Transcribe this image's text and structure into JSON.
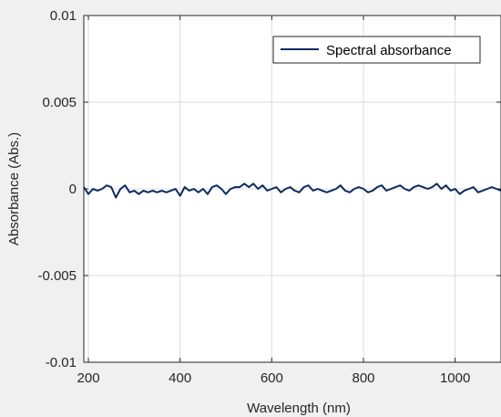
{
  "chart_data": {
    "type": "line",
    "title": "",
    "xlabel": "Wavelength (nm)",
    "ylabel": "Absorbance (Abs.)",
    "xlim": [
      190,
      1100
    ],
    "ylim": [
      -0.01,
      0.01
    ],
    "x_ticks": [
      200,
      400,
      600,
      800,
      1000
    ],
    "x_tick_labels": [
      "200",
      "400",
      "600",
      "800",
      "1000"
    ],
    "y_ticks": [
      0.01,
      0.005,
      0,
      -0.005,
      -0.01
    ],
    "y_tick_labels": [
      "0.01",
      "0.005",
      "0",
      "-0.005",
      "-0.01"
    ],
    "grid": true,
    "legend_position": "top-right",
    "series_color": "#0d2b5e",
    "series": [
      {
        "name": "Spectral absorbance",
        "x": [
          190,
          200,
          210,
          220,
          230,
          240,
          250,
          260,
          270,
          280,
          290,
          300,
          310,
          320,
          330,
          340,
          350,
          360,
          370,
          380,
          390,
          400,
          410,
          420,
          430,
          440,
          450,
          460,
          470,
          480,
          490,
          500,
          510,
          520,
          530,
          540,
          550,
          560,
          570,
          580,
          590,
          600,
          610,
          620,
          630,
          640,
          650,
          660,
          670,
          680,
          690,
          700,
          710,
          720,
          730,
          740,
          750,
          760,
          770,
          780,
          790,
          800,
          810,
          820,
          830,
          840,
          850,
          860,
          870,
          880,
          890,
          900,
          910,
          920,
          930,
          940,
          950,
          960,
          970,
          980,
          990,
          1000,
          1010,
          1020,
          1030,
          1040,
          1050,
          1060,
          1070,
          1080,
          1090,
          1100
        ],
        "values": [
          0.0001,
          -0.0003,
          0.0,
          -0.0001,
          0.0,
          0.0002,
          0.0001,
          -0.0005,
          0.0,
          0.0002,
          -0.0002,
          -0.0001,
          -0.0003,
          -0.0001,
          -0.0002,
          -0.0001,
          -0.0002,
          -0.0001,
          -0.0002,
          -0.0001,
          0.0,
          -0.0004,
          0.0001,
          -0.0001,
          0.0,
          -0.0002,
          0.0,
          -0.0003,
          0.0001,
          0.0002,
          0.0,
          -0.0003,
          0.0,
          0.0001,
          0.0001,
          0.0003,
          0.0001,
          0.0003,
          0.0,
          0.0002,
          -0.0001,
          0.0,
          0.0001,
          -0.0002,
          0.0,
          0.0001,
          -0.0001,
          -0.0002,
          0.0001,
          0.0002,
          -0.0001,
          0.0,
          -0.0001,
          -0.0002,
          -0.0001,
          0.0,
          0.0002,
          -0.0001,
          -0.0002,
          0.0,
          0.0001,
          0.0,
          -0.0002,
          -0.0001,
          0.0001,
          0.0002,
          -0.0001,
          0.0,
          0.0001,
          0.0002,
          0.0,
          -0.0001,
          0.0001,
          0.0002,
          0.0001,
          0.0,
          0.0001,
          0.0003,
          0.0,
          0.0002,
          -0.0001,
          0.0,
          -0.0003,
          -0.0001,
          0.0,
          0.0001,
          -0.0002,
          -0.0001,
          0.0,
          0.0001,
          0.0,
          -0.0001
        ]
      }
    ]
  }
}
